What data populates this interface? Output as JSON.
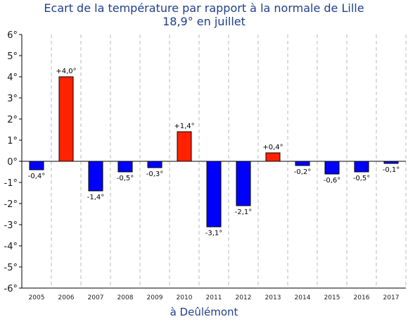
{
  "chart_data": {
    "type": "bar",
    "title": "Ecart de la température par rapport à la normale de Lille",
    "subtitle": "18,9° en juillet",
    "xlabel": "à Deûlémont",
    "ylabel": "",
    "categories": [
      "2005",
      "2006",
      "2007",
      "2008",
      "2009",
      "2010",
      "2011",
      "2012",
      "2013",
      "2014",
      "2015",
      "2016",
      "2017"
    ],
    "values": [
      -0.4,
      4.0,
      -1.4,
      -0.5,
      -0.3,
      1.4,
      -3.1,
      -2.1,
      0.4,
      -0.2,
      -0.6,
      -0.5,
      -0.1
    ],
    "data_labels": [
      "-0,4°",
      "+4,0°",
      "-1,4°",
      "-0,5°",
      "-0,3°",
      "+1,4°",
      "-3,1°",
      "-2,1°",
      "+0,4°",
      "-0,2°",
      "-0,6°",
      "-0,5°",
      "-0,1°"
    ],
    "ylim": [
      -6,
      6
    ],
    "yticks": [
      6,
      5,
      4,
      3,
      2,
      1,
      0,
      -1,
      -2,
      -3,
      -4,
      -5,
      -6
    ],
    "ytick_labels": [
      "6°",
      "5°",
      "4°",
      "3°",
      "2°",
      "1°",
      "0°",
      "-1°",
      "-2°",
      "-3°",
      "-4°",
      "-5°",
      "-6°"
    ],
    "grid": "vertical dashed",
    "colors": {
      "positive": "#ff2200",
      "negative": "#0000ff",
      "title": "#1f3e8c"
    }
  }
}
